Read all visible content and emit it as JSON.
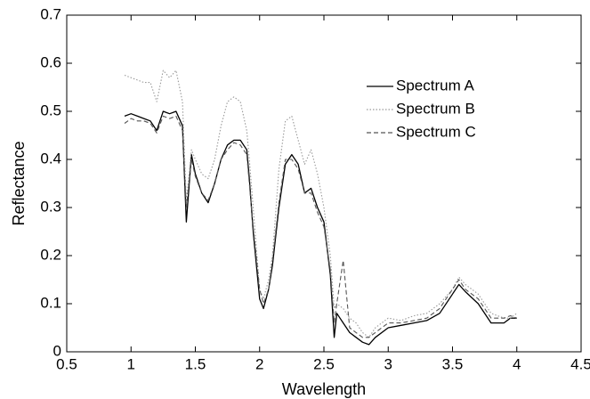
{
  "chart_data": {
    "type": "line",
    "xlabel": "Wavelength",
    "ylabel": "Reflectance",
    "x": [
      0.95,
      1.0,
      1.05,
      1.1,
      1.15,
      1.2,
      1.25,
      1.3,
      1.35,
      1.4,
      1.43,
      1.47,
      1.5,
      1.55,
      1.6,
      1.65,
      1.7,
      1.75,
      1.8,
      1.85,
      1.9,
      1.92,
      1.95,
      2.0,
      2.03,
      2.07,
      2.1,
      2.15,
      2.2,
      2.25,
      2.3,
      2.35,
      2.4,
      2.45,
      2.5,
      2.55,
      2.58,
      2.6,
      2.65,
      2.7,
      2.75,
      2.8,
      2.85,
      2.9,
      3.0,
      3.1,
      3.2,
      3.3,
      3.4,
      3.5,
      3.55,
      3.6,
      3.7,
      3.8,
      3.9,
      3.95,
      4.0
    ],
    "series": [
      {
        "name": "Spectrum A",
        "color": "#000000",
        "dash": "none",
        "values": [
          0.49,
          0.495,
          0.49,
          0.485,
          0.48,
          0.46,
          0.5,
          0.495,
          0.5,
          0.47,
          0.27,
          0.41,
          0.37,
          0.33,
          0.31,
          0.35,
          0.4,
          0.43,
          0.44,
          0.44,
          0.42,
          0.36,
          0.25,
          0.11,
          0.09,
          0.13,
          0.18,
          0.3,
          0.39,
          0.41,
          0.39,
          0.33,
          0.34,
          0.3,
          0.27,
          0.16,
          0.03,
          0.08,
          0.06,
          0.04,
          0.03,
          0.02,
          0.015,
          0.03,
          0.05,
          0.055,
          0.06,
          0.065,
          0.08,
          0.12,
          0.14,
          0.125,
          0.1,
          0.06,
          0.06,
          0.07,
          0.07
        ]
      },
      {
        "name": "Spectrum B",
        "color": "#999999",
        "dash": "1.5,2",
        "values": [
          0.575,
          0.57,
          0.565,
          0.56,
          0.56,
          0.52,
          0.585,
          0.57,
          0.585,
          0.52,
          0.31,
          0.42,
          0.4,
          0.37,
          0.36,
          0.4,
          0.47,
          0.52,
          0.53,
          0.52,
          0.46,
          0.4,
          0.3,
          0.13,
          0.11,
          0.15,
          0.2,
          0.38,
          0.48,
          0.49,
          0.44,
          0.39,
          0.42,
          0.37,
          0.3,
          0.2,
          0.09,
          0.1,
          0.09,
          0.07,
          0.06,
          0.04,
          0.03,
          0.05,
          0.07,
          0.065,
          0.075,
          0.08,
          0.1,
          0.13,
          0.155,
          0.14,
          0.12,
          0.08,
          0.07,
          0.07,
          0.08
        ]
      },
      {
        "name": "Spectrum C",
        "color": "#555555",
        "dash": "5,3",
        "values": [
          0.475,
          0.485,
          0.48,
          0.48,
          0.475,
          0.455,
          0.49,
          0.485,
          0.49,
          0.46,
          0.3,
          0.4,
          0.365,
          0.33,
          0.315,
          0.35,
          0.4,
          0.42,
          0.435,
          0.43,
          0.41,
          0.35,
          0.26,
          0.13,
          0.1,
          0.13,
          0.19,
          0.31,
          0.4,
          0.4,
          0.38,
          0.33,
          0.33,
          0.29,
          0.26,
          0.17,
          0.06,
          0.1,
          0.19,
          0.05,
          0.04,
          0.03,
          0.03,
          0.04,
          0.06,
          0.06,
          0.065,
          0.07,
          0.09,
          0.13,
          0.15,
          0.13,
          0.11,
          0.07,
          0.07,
          0.075,
          0.07
        ]
      }
    ],
    "xlim": [
      0.5,
      4.5
    ],
    "xticks": [
      0.5,
      1,
      1.5,
      2,
      2.5,
      3,
      3.5,
      4,
      4.5
    ],
    "ylim": [
      0,
      0.7
    ],
    "yticks": [
      0,
      0.1,
      0.2,
      0.3,
      0.4,
      0.5,
      0.6,
      0.7
    ],
    "grid": false,
    "legend": "upper right"
  }
}
